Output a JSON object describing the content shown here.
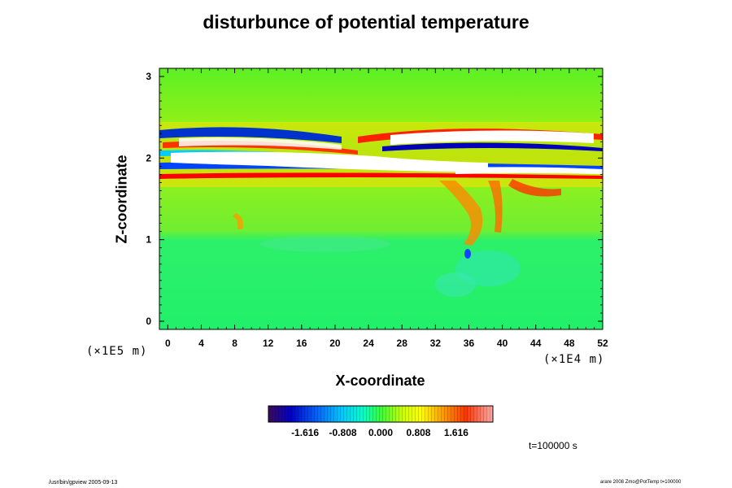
{
  "chart_data": {
    "type": "heatmap",
    "title": "disturbunce of potential temperature",
    "xlabel": "X-coordinate",
    "ylabel": "Z-coordinate",
    "x_unit": "(×1E4 m)",
    "y_unit": "(×1E5 m)",
    "xlim": [
      -1,
      52
    ],
    "ylim": [
      -0.1,
      3.1
    ],
    "x_ticks": [
      "0",
      "4",
      "8",
      "12",
      "16",
      "20",
      "24",
      "28",
      "32",
      "36",
      "40",
      "44",
      "48",
      "52"
    ],
    "x_tick_values": [
      0,
      4,
      8,
      12,
      16,
      20,
      24,
      28,
      32,
      36,
      40,
      44,
      48,
      52
    ],
    "y_ticks": [
      "0",
      "1",
      "2",
      "3"
    ],
    "y_tick_values": [
      0,
      1,
      2,
      3
    ],
    "colorbar": {
      "tick_labels": [
        "-1.616",
        "-0.808",
        "0.000",
        "0.808",
        "1.616"
      ],
      "tick_values": [
        -1.616,
        -0.808,
        0.0,
        0.808,
        1.616
      ],
      "range": [
        -2.4,
        2.4
      ],
      "colors": [
        "#3b0a5a",
        "#0000cc",
        "#0066ff",
        "#00ccff",
        "#00ffcc",
        "#33ff33",
        "#ccff00",
        "#ffff00",
        "#ff9900",
        "#ff3300",
        "#ffaaaa"
      ]
    },
    "annotation": "t=100000 s"
  },
  "footer": {
    "left": "/usr/bin/gpview 2005-09-13",
    "right": "arare 2008 Zmo@PotTemp t=100000"
  }
}
